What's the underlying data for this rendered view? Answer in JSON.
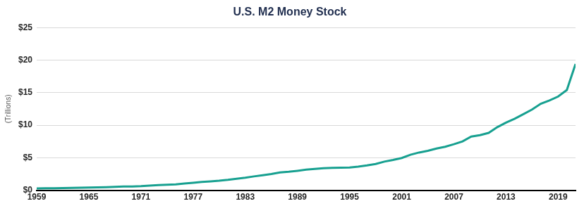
{
  "chart_data": {
    "type": "line",
    "title": "U.S. M2 Money Stock",
    "y_label": "(Trillions)",
    "x": [
      1959,
      1960,
      1961,
      1962,
      1963,
      1964,
      1965,
      1966,
      1967,
      1968,
      1969,
      1970,
      1971,
      1972,
      1973,
      1974,
      1975,
      1976,
      1977,
      1978,
      1979,
      1980,
      1981,
      1982,
      1983,
      1984,
      1985,
      1986,
      1987,
      1988,
      1989,
      1990,
      1991,
      1992,
      1993,
      1994,
      1995,
      1996,
      1997,
      1998,
      1999,
      2000,
      2001,
      2002,
      2003,
      2004,
      2005,
      2006,
      2007,
      2008,
      2009,
      2010,
      2011,
      2012,
      2013,
      2014,
      2015,
      2016,
      2017,
      2018,
      2019,
      2020,
      2021
    ],
    "values": [
      0.29,
      0.3,
      0.31,
      0.33,
      0.36,
      0.39,
      0.42,
      0.45,
      0.48,
      0.52,
      0.57,
      0.59,
      0.63,
      0.71,
      0.8,
      0.86,
      0.91,
      1.03,
      1.15,
      1.27,
      1.37,
      1.47,
      1.6,
      1.76,
      1.93,
      2.13,
      2.31,
      2.5,
      2.73,
      2.84,
      2.99,
      3.16,
      3.29,
      3.39,
      3.43,
      3.48,
      3.49,
      3.63,
      3.81,
      4.03,
      4.4,
      4.66,
      4.96,
      5.46,
      5.8,
      6.07,
      6.42,
      6.68,
      7.07,
      7.5,
      8.25,
      8.47,
      8.81,
      9.7,
      10.4,
      11.0,
      11.7,
      12.4,
      13.3,
      13.8,
      14.4,
      15.4,
      19.4
    ],
    "color": "#17a090",
    "xlim": [
      1959,
      2021
    ],
    "xticks": [
      1959,
      1965,
      1971,
      1977,
      1983,
      1989,
      1995,
      2001,
      2007,
      2013,
      2019
    ],
    "ylim": [
      0,
      25
    ],
    "yticks": [
      {
        "value": 0,
        "label": "$0"
      },
      {
        "value": 5,
        "label": "$5"
      },
      {
        "value": 10,
        "label": "$10"
      },
      {
        "value": 15,
        "label": "$15"
      },
      {
        "value": 20,
        "label": "$20"
      },
      {
        "value": 25,
        "label": "$25"
      }
    ],
    "grid": true
  }
}
